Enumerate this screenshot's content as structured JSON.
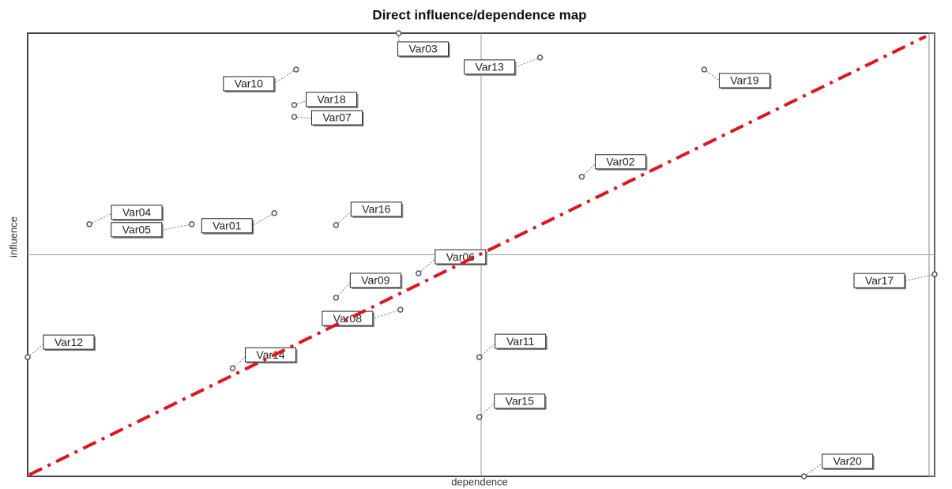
{
  "chart_data": {
    "type": "scatter",
    "title": "Direct influence/dependence map",
    "xlabel": "dependence",
    "ylabel": "influence",
    "labels": [
      "Var03",
      "Var13",
      "Var19",
      "Var10",
      "Var18",
      "Var07",
      "Var02",
      "Var04",
      "Var05",
      "Var01",
      "Var16",
      "Var06",
      "Var09",
      "Var08",
      "Var17",
      "Var12",
      "Var14",
      "Var11",
      "Var15",
      "Var20"
    ],
    "x": [
      40.9,
      56.5,
      74.6,
      29.6,
      29.4,
      29.4,
      61.1,
      6.8,
      18.1,
      27.2,
      34.0,
      43.1,
      34.0,
      41.1,
      100,
      0,
      22.6,
      49.8,
      49.8,
      85.6
    ],
    "values": [
      100,
      94.5,
      91.8,
      91.8,
      83.8,
      81.1,
      67.6,
      56.9,
      56.9,
      59.4,
      56.7,
      45.8,
      40.3,
      37.6,
      45.6,
      26.9,
      24.4,
      26.9,
      13.4,
      0
    ],
    "color": "#555555",
    "xlim": [
      0,
      100
    ],
    "ylim": [
      0,
      100
    ],
    "vline": 50,
    "hline": 50
  }
}
